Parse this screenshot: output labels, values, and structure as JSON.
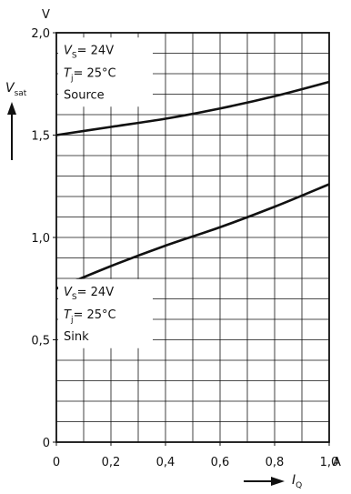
{
  "chart_data": {
    "type": "line",
    "title": "",
    "x": [
      0,
      0.2,
      0.4,
      0.6,
      0.8,
      1.0
    ],
    "xlim": [
      0,
      1.0
    ],
    "ylim": [
      0,
      2.0
    ],
    "x_ticks": [
      "0",
      "0,2",
      "0,4",
      "0,6",
      "0,8",
      "1,0"
    ],
    "y_ticks": [
      "0",
      "0,5",
      "1,0",
      "1,5",
      "2,0"
    ],
    "x_unit": "A",
    "y_unit": "V",
    "xlabel": {
      "main": "I",
      "sub": "Q"
    },
    "ylabel": {
      "main": "V",
      "sub": "sat"
    },
    "grid": true,
    "series": [
      {
        "name": "Source",
        "values": [
          1.5,
          1.54,
          1.58,
          1.63,
          1.69,
          1.76
        ]
      },
      {
        "name": "Sink",
        "values": [
          0.75,
          0.86,
          0.96,
          1.05,
          1.15,
          1.26
        ]
      }
    ],
    "annotations": [
      {
        "series": "Source",
        "vs_sym": "V",
        "vs_sub": "S",
        "vs_val": "= 24V",
        "tj_sym": "T",
        "tj_sub": "j",
        "tj_val": "= 25°C",
        "label": "Source"
      },
      {
        "series": "Sink",
        "vs_sym": "V",
        "vs_sub": "S",
        "vs_val": "= 24V",
        "tj_sym": "T",
        "tj_sub": "j",
        "tj_val": "= 25°C",
        "label": "Sink"
      }
    ]
  }
}
